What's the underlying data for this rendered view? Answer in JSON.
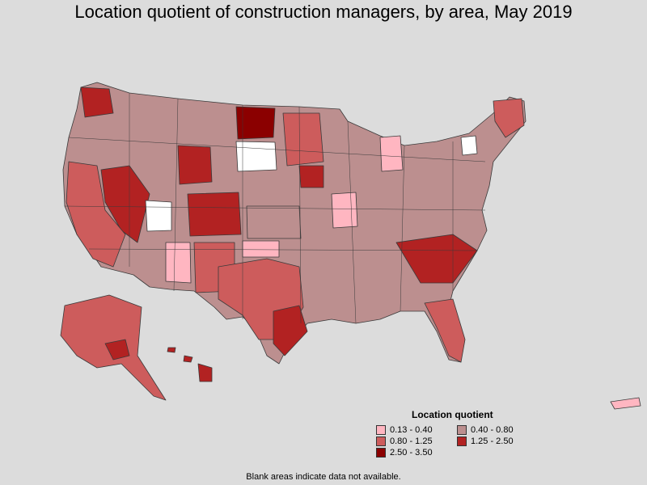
{
  "title": "Location quotient of construction managers, by area, May 2019",
  "legend": {
    "title": "Location quotient",
    "items": [
      {
        "label": "0.13 - 0.40",
        "color": "#ffb6c1"
      },
      {
        "label": "0.40 - 0.80",
        "color": "#bc8f8f"
      },
      {
        "label": "0.80 - 1.25",
        "color": "#cd5c5c"
      },
      {
        "label": "1.25 - 2.50",
        "color": "#b22222"
      },
      {
        "label": "2.50 - 3.50",
        "color": "#8b0000"
      }
    ]
  },
  "footnote": "Blank areas indicate data not available.",
  "colors": {
    "background": "#dcdcdc",
    "no_data": "#ffffff",
    "border": "#3a3a3a"
  }
}
